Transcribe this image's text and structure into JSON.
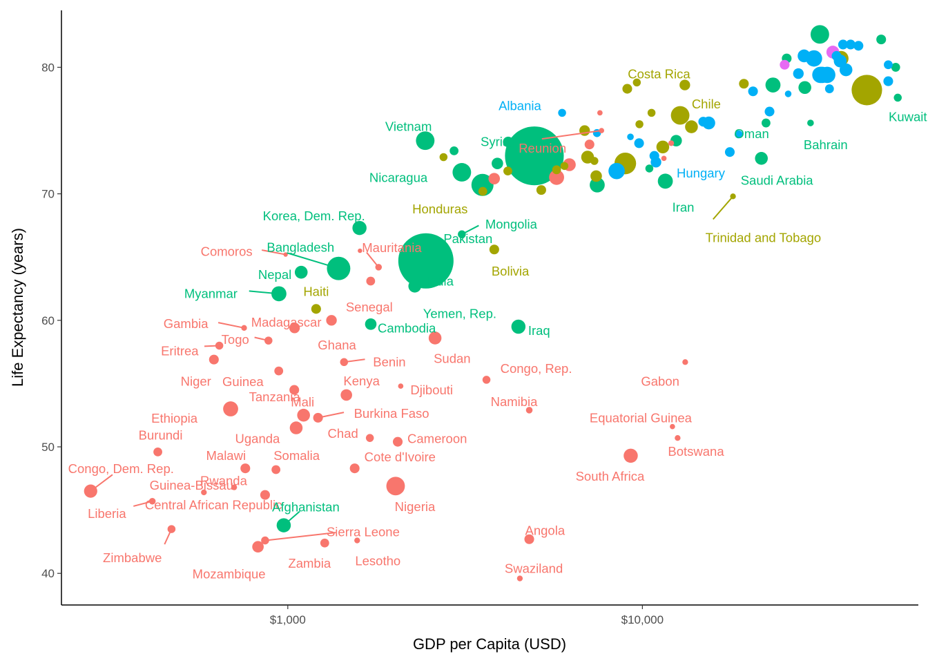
{
  "colors": {
    "Africa": "#F8766D",
    "Americas": "#A3A500",
    "Asia": "#00BF7D",
    "Europe": "#00B0F6",
    "Oceania": "#E76BF3"
  },
  "chart_data": {
    "type": "scatter",
    "title": "",
    "xlabel": "GDP per Capita (USD)",
    "ylabel": "Life Expectancy (years)",
    "x_scale": "log10",
    "xlim": [
      230,
      60000
    ],
    "ylim": [
      37.5,
      84.5
    ],
    "x_ticks": [
      {
        "value": 1000,
        "label": "$1,000"
      },
      {
        "value": 10000,
        "label": "$10,000"
      }
    ],
    "y_ticks": [
      {
        "value": 40,
        "label": "40"
      },
      {
        "value": 50,
        "label": "50"
      },
      {
        "value": 60,
        "label": "60"
      },
      {
        "value": 70,
        "label": "70"
      },
      {
        "value": 80,
        "label": "80"
      }
    ],
    "grid": false,
    "legend": "none",
    "size_encoding": "population",
    "series": [
      {
        "region": "Africa",
        "points": [
          {
            "x": 278,
            "y": 46.5,
            "size": 3,
            "label": "Congo, Dem. Rep."
          },
          {
            "x": 415,
            "y": 45.7,
            "size": 1.5,
            "label": "Liberia"
          },
          {
            "x": 470,
            "y": 43.5,
            "size": 1.8,
            "label": "Zimbabwe"
          },
          {
            "x": 430,
            "y": 49.6,
            "size": 2,
            "label": "Burundi"
          },
          {
            "x": 580,
            "y": 46.4,
            "size": 1.3,
            "label": "Guinea-Bissau"
          },
          {
            "x": 706,
            "y": 46.8,
            "size": 1.3,
            "label": "Central African Republic"
          },
          {
            "x": 759,
            "y": 48.3,
            "size": 2.2,
            "label": "Malawi"
          },
          {
            "x": 863,
            "y": 46.2,
            "size": 2.2,
            "label": "Rwanda"
          },
          {
            "x": 824,
            "y": 42.1,
            "size": 2.6,
            "label": "Mozambique"
          },
          {
            "x": 863,
            "y": 42.6,
            "size": 1.8,
            "label": "Sierra Leone"
          },
          {
            "x": 926,
            "y": 48.2,
            "size": 2,
            "label": "Somalia"
          },
          {
            "x": 690,
            "y": 53.0,
            "size": 3.4,
            "label": "Ethiopia"
          },
          {
            "x": 1108,
            "y": 52.5,
            "size": 2.9,
            "label": "Tanzania"
          },
          {
            "x": 1056,
            "y": 51.5,
            "size": 2.9,
            "label": "Uganda"
          },
          {
            "x": 1217,
            "y": 52.3,
            "size": 2.2,
            "label": "Burkina Faso"
          },
          {
            "x": 1271,
            "y": 42.4,
            "size": 2,
            "label": "Zambia"
          },
          {
            "x": 1569,
            "y": 42.6,
            "size": 1.3,
            "label": "Lesotho"
          },
          {
            "x": 1463,
            "y": 54.1,
            "size": 2.6,
            "label": "Kenya"
          },
          {
            "x": 1544,
            "y": 48.3,
            "size": 2.2,
            "label": "Cote d'Ivoire"
          },
          {
            "x": 1704,
            "y": 50.7,
            "size": 1.8,
            "label": "Chad"
          },
          {
            "x": 2042,
            "y": 50.4,
            "size": 2.2,
            "label": "Cameroon"
          },
          {
            "x": 2014,
            "y": 46.9,
            "size": 4.2,
            "label": "Nigeria"
          },
          {
            "x": 2082,
            "y": 54.8,
            "size": 1.2,
            "label": "Djibouti"
          },
          {
            "x": 1441,
            "y": 56.7,
            "size": 1.8,
            "label": "Benin"
          },
          {
            "x": 1043,
            "y": 54.5,
            "size": 2.2,
            "label": "Mali"
          },
          {
            "x": 943,
            "y": 56.0,
            "size": 2,
            "label": "Guinea"
          },
          {
            "x": 619,
            "y": 56.9,
            "size": 2.2,
            "label": "Niger"
          },
          {
            "x": 641,
            "y": 58.0,
            "size": 1.8,
            "label": "Eritrea"
          },
          {
            "x": 882,
            "y": 58.4,
            "size": 1.8,
            "label": "Togo"
          },
          {
            "x": 753,
            "y": 59.4,
            "size": 1.3,
            "label": "Gambia"
          },
          {
            "x": 1045,
            "y": 59.4,
            "size": 2.4,
            "label": "Madagascar"
          },
          {
            "x": 1328,
            "y": 60.0,
            "size": 2.4,
            "label": "Ghana"
          },
          {
            "x": 2602,
            "y": 58.6,
            "size": 2.9,
            "label": "Sudan"
          },
          {
            "x": 1713,
            "y": 63.1,
            "size": 2,
            "label": "Senegal"
          },
          {
            "x": 1803,
            "y": 64.2,
            "size": 1.5,
            "label": "Mauritania"
          },
          {
            "x": 986,
            "y": 65.2,
            "size": 1,
            "label": "Comoros"
          },
          {
            "x": 1598,
            "y": 65.5,
            "size": 1,
            "label": ""
          },
          {
            "x": 3633,
            "y": 55.3,
            "size": 1.8,
            "label": "Congo, Rep."
          },
          {
            "x": 4797,
            "y": 52.9,
            "size": 1.5,
            "label": "Namibia"
          },
          {
            "x": 4797,
            "y": 42.7,
            "size": 2.2,
            "label": "Angola"
          },
          {
            "x": 4513,
            "y": 39.6,
            "size": 1.3,
            "label": "Swaziland"
          },
          {
            "x": 9270,
            "y": 49.3,
            "size": 3.2,
            "label": "South Africa"
          },
          {
            "x": 12570,
            "y": 50.7,
            "size": 1.3,
            "label": "Botswana"
          },
          {
            "x": 12154,
            "y": 51.6,
            "size": 1.2,
            "label": "Equatorial Guinea"
          },
          {
            "x": 13206,
            "y": 56.7,
            "size": 1.3,
            "label": "Gabon"
          },
          {
            "x": 7670,
            "y": 75.0,
            "size": 1.2,
            "label": "Reunion"
          },
          {
            "x": 7093,
            "y": 73.9,
            "size": 2.2,
            "label": ""
          },
          {
            "x": 6223,
            "y": 72.3,
            "size": 2.9,
            "label": ""
          },
          {
            "x": 5728,
            "y": 71.3,
            "size": 3.4,
            "label": ""
          },
          {
            "x": 3820,
            "y": 71.2,
            "size": 2.6,
            "label": ""
          },
          {
            "x": 12057,
            "y": 74.0,
            "size": 1.3,
            "label": ""
          },
          {
            "x": 11500,
            "y": 72.8,
            "size": 1.2,
            "label": ""
          },
          {
            "x": 7590,
            "y": 76.4,
            "size": 1.2,
            "label": ""
          }
        ]
      },
      {
        "region": "Americas",
        "points": [
          {
            "x": 1202,
            "y": 60.9,
            "size": 2.2,
            "label": "Haiti"
          },
          {
            "x": 3822,
            "y": 65.6,
            "size": 2.2,
            "label": "Bolivia"
          },
          {
            "x": 2749,
            "y": 72.9,
            "size": 1.8,
            "label": ""
          },
          {
            "x": 3548,
            "y": 70.2,
            "size": 2,
            "label": "Honduras"
          },
          {
            "x": 4173,
            "y": 71.8,
            "size": 2,
            "label": ""
          },
          {
            "x": 5186,
            "y": 70.3,
            "size": 2.2,
            "label": ""
          },
          {
            "x": 5728,
            "y": 71.9,
            "size": 2,
            "label": ""
          },
          {
            "x": 6025,
            "y": 72.2,
            "size": 1.8,
            "label": ""
          },
          {
            "x": 6873,
            "y": 75.0,
            "size": 2.4,
            "label": ""
          },
          {
            "x": 7006,
            "y": 72.9,
            "size": 2.9,
            "label": ""
          },
          {
            "x": 7321,
            "y": 72.6,
            "size": 1.8,
            "label": ""
          },
          {
            "x": 7408,
            "y": 71.4,
            "size": 2.6,
            "label": ""
          },
          {
            "x": 8948,
            "y": 72.4,
            "size": 4.9,
            "label": ""
          },
          {
            "x": 9065,
            "y": 78.3,
            "size": 2.2,
            "label": "Costa Rica"
          },
          {
            "x": 9645,
            "y": 78.8,
            "size": 1.8,
            "label": ""
          },
          {
            "x": 9809,
            "y": 75.5,
            "size": 1.8,
            "label": ""
          },
          {
            "x": 10611,
            "y": 76.4,
            "size": 1.8,
            "label": ""
          },
          {
            "x": 11416,
            "y": 73.7,
            "size": 2.9,
            "label": ""
          },
          {
            "x": 12779,
            "y": 76.2,
            "size": 4.2,
            "label": ""
          },
          {
            "x": 13172,
            "y": 78.6,
            "size": 2.4,
            "label": "Chile"
          },
          {
            "x": 13752,
            "y": 75.3,
            "size": 2.9,
            "label": ""
          },
          {
            "x": 18009,
            "y": 69.8,
            "size": 1.3,
            "label": "Trinidad and Tobago"
          },
          {
            "x": 19329,
            "y": 78.7,
            "size": 2.2,
            "label": ""
          },
          {
            "x": 36319,
            "y": 80.7,
            "size": 3.4,
            "label": ""
          },
          {
            "x": 42952,
            "y": 78.2,
            "size": 6.9,
            "label": ""
          },
          {
            "x": 9000,
            "y": 81.0,
            "size": 0,
            "label": ""
          }
        ]
      },
      {
        "region": "Asia",
        "points": [
          {
            "x": 974,
            "y": 43.8,
            "size": 3.2,
            "label": "Afghanistan"
          },
          {
            "x": 944,
            "y": 62.1,
            "size": 3.4,
            "label": "Myanmar"
          },
          {
            "x": 1091,
            "y": 63.8,
            "size": 2.9,
            "label": "Nepal"
          },
          {
            "x": 1391,
            "y": 64.1,
            "size": 5.3,
            "label": "Bangladesh"
          },
          {
            "x": 1593,
            "y": 67.3,
            "size": 3.2,
            "label": "Korea, Dem. Rep."
          },
          {
            "x": 1714,
            "y": 59.7,
            "size": 2.6,
            "label": "Cambodia"
          },
          {
            "x": 2281,
            "y": 62.7,
            "size": 2.9,
            "label": "Yemen, Rep."
          },
          {
            "x": 2452,
            "y": 64.7,
            "size": 12.5,
            "label": "India"
          },
          {
            "x": 2605,
            "y": 65.5,
            "size": 0,
            "label": "Pakistan"
          },
          {
            "x": 3096,
            "y": 66.8,
            "size": 1.8,
            "label": "Mongolia"
          },
          {
            "x": 2441,
            "y": 74.2,
            "size": 4.2,
            "label": "Vietnam"
          },
          {
            "x": 3096,
            "y": 71.7,
            "size": 4.2,
            "label": "Nicaragua"
          },
          {
            "x": 2944,
            "y": 73.4,
            "size": 2,
            "label": ""
          },
          {
            "x": 3540,
            "y": 70.7,
            "size": 5.0,
            "label": ""
          },
          {
            "x": 4184,
            "y": 74.1,
            "size": 2.4,
            "label": "Syria"
          },
          {
            "x": 3900,
            "y": 72.4,
            "size": 2.6,
            "label": ""
          },
          {
            "x": 4471,
            "y": 59.5,
            "size": 3.2,
            "label": "Iraq"
          },
          {
            "x": 4959,
            "y": 73.0,
            "size": 13.3,
            "label": ""
          },
          {
            "x": 7458,
            "y": 70.7,
            "size": 3.4,
            "label": ""
          },
          {
            "x": 11606,
            "y": 71.0,
            "size": 3.4,
            "label": "Iran"
          },
          {
            "x": 10461,
            "y": 72.0,
            "size": 1.8,
            "label": ""
          },
          {
            "x": 12452,
            "y": 74.2,
            "size": 2.6,
            "label": ""
          },
          {
            "x": 21655,
            "y": 72.8,
            "size": 2.9,
            "label": "Saudi Arabia"
          },
          {
            "x": 22316,
            "y": 75.6,
            "size": 2,
            "label": "Oman"
          },
          {
            "x": 29796,
            "y": 75.6,
            "size": 1.5,
            "label": "Bahrain"
          },
          {
            "x": 23348,
            "y": 78.6,
            "size": 3.4,
            "label": ""
          },
          {
            "x": 28718,
            "y": 78.4,
            "size": 2.9,
            "label": ""
          },
          {
            "x": 31656,
            "y": 82.6,
            "size": 4.2,
            "label": ""
          },
          {
            "x": 25524,
            "y": 80.7,
            "size": 2.2,
            "label": ""
          },
          {
            "x": 47143,
            "y": 82.2,
            "size": 2.2,
            "label": ""
          },
          {
            "x": 51800,
            "y": 80.0,
            "size": 2,
            "label": ""
          },
          {
            "x": 52500,
            "y": 77.6,
            "size": 1.8,
            "label": ""
          },
          {
            "x": 47307,
            "y": 77.6,
            "size": 0,
            "label": "Kuwait"
          },
          {
            "x": 8300,
            "y": 74.5,
            "size": 0,
            "label": ""
          }
        ]
      },
      {
        "region": "Europe",
        "points": [
          {
            "x": 5937,
            "y": 76.4,
            "size": 1.8,
            "label": "Albania"
          },
          {
            "x": 7446,
            "y": 74.8,
            "size": 1.8,
            "label": ""
          },
          {
            "x": 8460,
            "y": 71.8,
            "size": 3.7,
            "label": ""
          },
          {
            "x": 9254,
            "y": 74.5,
            "size": 1.5,
            "label": ""
          },
          {
            "x": 9787,
            "y": 74.0,
            "size": 2.2,
            "label": ""
          },
          {
            "x": 10808,
            "y": 73.0,
            "size": 2.2,
            "label": ""
          },
          {
            "x": 10922,
            "y": 72.5,
            "size": 2.4,
            "label": "Hungary"
          },
          {
            "x": 14843,
            "y": 75.7,
            "size": 2.2,
            "label": ""
          },
          {
            "x": 15390,
            "y": 75.6,
            "size": 2.9,
            "label": ""
          },
          {
            "x": 17641,
            "y": 73.3,
            "size": 2.2,
            "label": ""
          },
          {
            "x": 18678,
            "y": 74.7,
            "size": 1.8,
            "label": ""
          },
          {
            "x": 20510,
            "y": 78.1,
            "size": 2.2,
            "label": ""
          },
          {
            "x": 22833,
            "y": 76.5,
            "size": 2.2,
            "label": ""
          },
          {
            "x": 25768,
            "y": 77.9,
            "size": 1.5,
            "label": ""
          },
          {
            "x": 27538,
            "y": 79.5,
            "size": 2.4,
            "label": ""
          },
          {
            "x": 28570,
            "y": 80.9,
            "size": 2.9,
            "label": ""
          },
          {
            "x": 30470,
            "y": 80.7,
            "size": 3.7,
            "label": ""
          },
          {
            "x": 31764,
            "y": 79.4,
            "size": 3.7,
            "label": ""
          },
          {
            "x": 32170,
            "y": 79.4,
            "size": 3.7,
            "label": ""
          },
          {
            "x": 33207,
            "y": 79.4,
            "size": 3.7,
            "label": ""
          },
          {
            "x": 33692,
            "y": 78.3,
            "size": 2,
            "label": ""
          },
          {
            "x": 35278,
            "y": 80.9,
            "size": 2.2,
            "label": ""
          },
          {
            "x": 36126,
            "y": 80.5,
            "size": 2.9,
            "label": ""
          },
          {
            "x": 36798,
            "y": 81.8,
            "size": 2.2,
            "label": ""
          },
          {
            "x": 37506,
            "y": 79.8,
            "size": 2.9,
            "label": ""
          },
          {
            "x": 38650,
            "y": 81.8,
            "size": 2.2,
            "label": ""
          },
          {
            "x": 40676,
            "y": 81.7,
            "size": 2.2,
            "label": ""
          },
          {
            "x": 49357,
            "y": 78.9,
            "size": 2.2,
            "label": ""
          },
          {
            "x": 49357,
            "y": 80.2,
            "size": 2,
            "label": ""
          }
        ]
      },
      {
        "region": "Oceania",
        "points": [
          {
            "x": 25185,
            "y": 80.2,
            "size": 2.2,
            "label": ""
          },
          {
            "x": 34435,
            "y": 81.2,
            "size": 2.9,
            "label": ""
          }
        ]
      }
    ]
  }
}
